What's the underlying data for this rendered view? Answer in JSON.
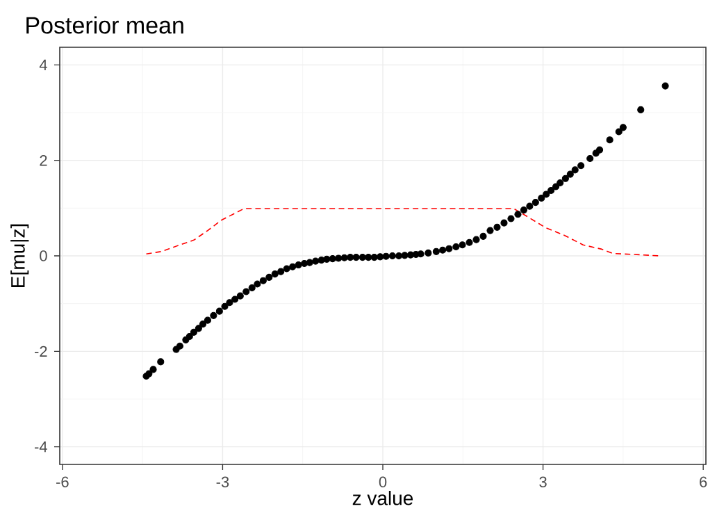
{
  "chart_data": {
    "type": "scatter",
    "title": "Posterior mean",
    "xlabel": "z value",
    "ylabel": "E[mu|z]",
    "xlim": [
      -6.05,
      6.05
    ],
    "ylim": [
      -4.37,
      4.37
    ],
    "xticks": [
      -6,
      -3,
      0,
      3,
      6
    ],
    "yticks": [
      -4,
      -2,
      0,
      2,
      4
    ],
    "grid": true,
    "marker": "circle",
    "series": [
      {
        "color": "#000000",
        "x": [
          -4.43,
          -4.38,
          -4.3,
          -4.16,
          -3.87,
          -3.8,
          -3.69,
          -3.62,
          -3.54,
          -3.45,
          -3.37,
          -3.28,
          -3.17,
          -3.06,
          -2.96,
          -2.87,
          -2.77,
          -2.67,
          -2.56,
          -2.45,
          -2.35,
          -2.24,
          -2.13,
          -2.02,
          -1.91,
          -1.8,
          -1.69,
          -1.58,
          -1.47,
          -1.37,
          -1.26,
          -1.15,
          -1.05,
          -0.94,
          -0.83,
          -0.72,
          -0.61,
          -0.5,
          -0.38,
          -0.27,
          -0.16,
          -0.05,
          0.06,
          0.18,
          0.3,
          0.41,
          0.52,
          0.62,
          0.71,
          0.85,
          1.0,
          1.12,
          1.24,
          1.37,
          1.49,
          1.62,
          1.75,
          1.88,
          2.01,
          2.14,
          2.27,
          2.4,
          2.53,
          2.64,
          2.75,
          2.86,
          2.97,
          3.06,
          3.15,
          3.24,
          3.32,
          3.42,
          3.51,
          3.6,
          3.71,
          3.88,
          3.99,
          4.06,
          4.25,
          4.42,
          4.5,
          4.83,
          5.29
        ],
        "values": [
          -2.52,
          -2.47,
          -2.38,
          -2.22,
          -1.96,
          -1.89,
          -1.76,
          -1.69,
          -1.6,
          -1.52,
          -1.43,
          -1.35,
          -1.25,
          -1.16,
          -1.06,
          -0.98,
          -0.91,
          -0.84,
          -0.75,
          -0.67,
          -0.59,
          -0.52,
          -0.45,
          -0.38,
          -0.33,
          -0.27,
          -0.23,
          -0.19,
          -0.16,
          -0.14,
          -0.11,
          -0.09,
          -0.07,
          -0.06,
          -0.05,
          -0.04,
          -0.03,
          -0.03,
          -0.03,
          -0.03,
          -0.03,
          -0.02,
          -0.01,
          0.0,
          0.0,
          0.01,
          0.02,
          0.03,
          0.04,
          0.06,
          0.09,
          0.12,
          0.15,
          0.19,
          0.23,
          0.28,
          0.34,
          0.41,
          0.53,
          0.6,
          0.69,
          0.78,
          0.87,
          0.96,
          1.04,
          1.12,
          1.21,
          1.29,
          1.37,
          1.45,
          1.53,
          1.62,
          1.71,
          1.8,
          1.89,
          2.04,
          2.15,
          2.22,
          2.43,
          2.6,
          2.69,
          3.06,
          3.56
        ]
      },
      {
        "type": "line",
        "color": "#ff0000",
        "line_style": "dashed",
        "marker": "none",
        "x": [
          -4.43,
          -4.15,
          -3.8,
          -3.54,
          -3.28,
          -3.02,
          -2.72,
          -2.6,
          2.45,
          2.71,
          3.05,
          3.4,
          3.75,
          4.1,
          4.31,
          4.7,
          5.18
        ],
        "values": [
          0.04,
          0.09,
          0.23,
          0.33,
          0.53,
          0.75,
          0.92,
          0.99,
          0.99,
          0.82,
          0.59,
          0.43,
          0.23,
          0.14,
          0.05,
          0.03,
          0.0
        ]
      }
    ]
  }
}
